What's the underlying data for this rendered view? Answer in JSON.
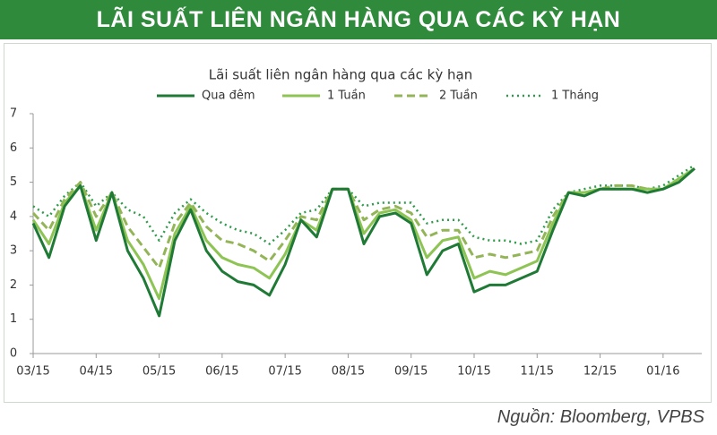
{
  "header": {
    "title": "LÃI SUẤT LIÊN NGÂN HÀNG QUA CÁC KỲ HẠN"
  },
  "source": "Nguồn: Bloomberg, VPBS",
  "chart_data": {
    "type": "line",
    "title": "Lãi suất liên ngân hàng qua các kỳ hạn",
    "categories": [
      "03/15",
      null,
      null,
      null,
      "04/15",
      null,
      null,
      null,
      "05/15",
      null,
      null,
      null,
      "06/15",
      null,
      null,
      null,
      "07/15",
      null,
      null,
      null,
      "08/15",
      null,
      null,
      null,
      "09/15",
      null,
      null,
      null,
      "10/15",
      null,
      null,
      null,
      "11/15",
      null,
      null,
      null,
      "12/15",
      null,
      null,
      null,
      "01/16",
      null,
      null
    ],
    "series": [
      {
        "name": "Qua đêm",
        "color": "#1f7a36",
        "dash": "solid",
        "values": [
          3.8,
          2.8,
          4.3,
          4.9,
          3.3,
          4.7,
          3.0,
          2.2,
          1.1,
          3.3,
          4.2,
          3.0,
          2.4,
          2.1,
          2.0,
          1.7,
          2.6,
          3.9,
          3.4,
          4.8,
          4.8,
          3.2,
          4.0,
          4.1,
          3.8,
          2.3,
          3.0,
          3.2,
          1.8,
          2.0,
          2.0,
          2.2,
          2.4,
          3.6,
          4.7,
          4.6,
          4.8,
          4.8,
          4.8,
          4.7,
          4.8,
          5.0,
          5.4
        ]
      },
      {
        "name": "1 Tuần",
        "color": "#8dc454",
        "dash": "solid",
        "values": [
          3.9,
          3.2,
          4.4,
          4.9,
          3.6,
          4.7,
          3.3,
          2.6,
          1.6,
          3.5,
          4.3,
          3.3,
          2.8,
          2.6,
          2.5,
          2.2,
          2.9,
          3.9,
          3.6,
          4.8,
          4.8,
          3.5,
          4.1,
          4.2,
          3.9,
          2.8,
          3.3,
          3.4,
          2.2,
          2.4,
          2.3,
          2.5,
          2.7,
          3.8,
          4.7,
          4.7,
          4.8,
          4.8,
          4.8,
          4.8,
          4.8,
          5.1,
          5.4
        ]
      },
      {
        "name": "2 Tuần",
        "color": "#93b557",
        "dash": "dashed",
        "values": [
          4.1,
          3.6,
          4.5,
          5.0,
          4.0,
          4.7,
          3.7,
          3.1,
          2.5,
          3.8,
          4.4,
          3.7,
          3.3,
          3.2,
          3.0,
          2.7,
          3.3,
          4.0,
          3.9,
          4.8,
          4.8,
          3.9,
          4.2,
          4.3,
          4.1,
          3.4,
          3.6,
          3.6,
          2.8,
          2.9,
          2.8,
          2.9,
          3.0,
          4.0,
          4.7,
          4.7,
          4.8,
          4.9,
          4.9,
          4.8,
          4.8,
          5.1,
          5.4
        ]
      },
      {
        "name": "1 Tháng",
        "color": "#2e9b4a",
        "dash": "dotted",
        "values": [
          4.3,
          4.0,
          4.6,
          5.0,
          4.3,
          4.7,
          4.2,
          4.0,
          3.3,
          4.1,
          4.5,
          4.1,
          3.8,
          3.6,
          3.5,
          3.2,
          3.6,
          4.1,
          4.2,
          4.8,
          4.8,
          4.3,
          4.4,
          4.4,
          4.4,
          3.8,
          3.9,
          3.9,
          3.4,
          3.3,
          3.3,
          3.2,
          3.3,
          4.2,
          4.7,
          4.8,
          4.9,
          4.9,
          4.9,
          4.8,
          4.9,
          5.2,
          5.5
        ]
      }
    ],
    "ylim": [
      0,
      7
    ],
    "yticks": [
      0,
      1,
      2,
      3,
      4,
      5,
      6,
      7
    ],
    "grid": false,
    "legend": "top"
  }
}
